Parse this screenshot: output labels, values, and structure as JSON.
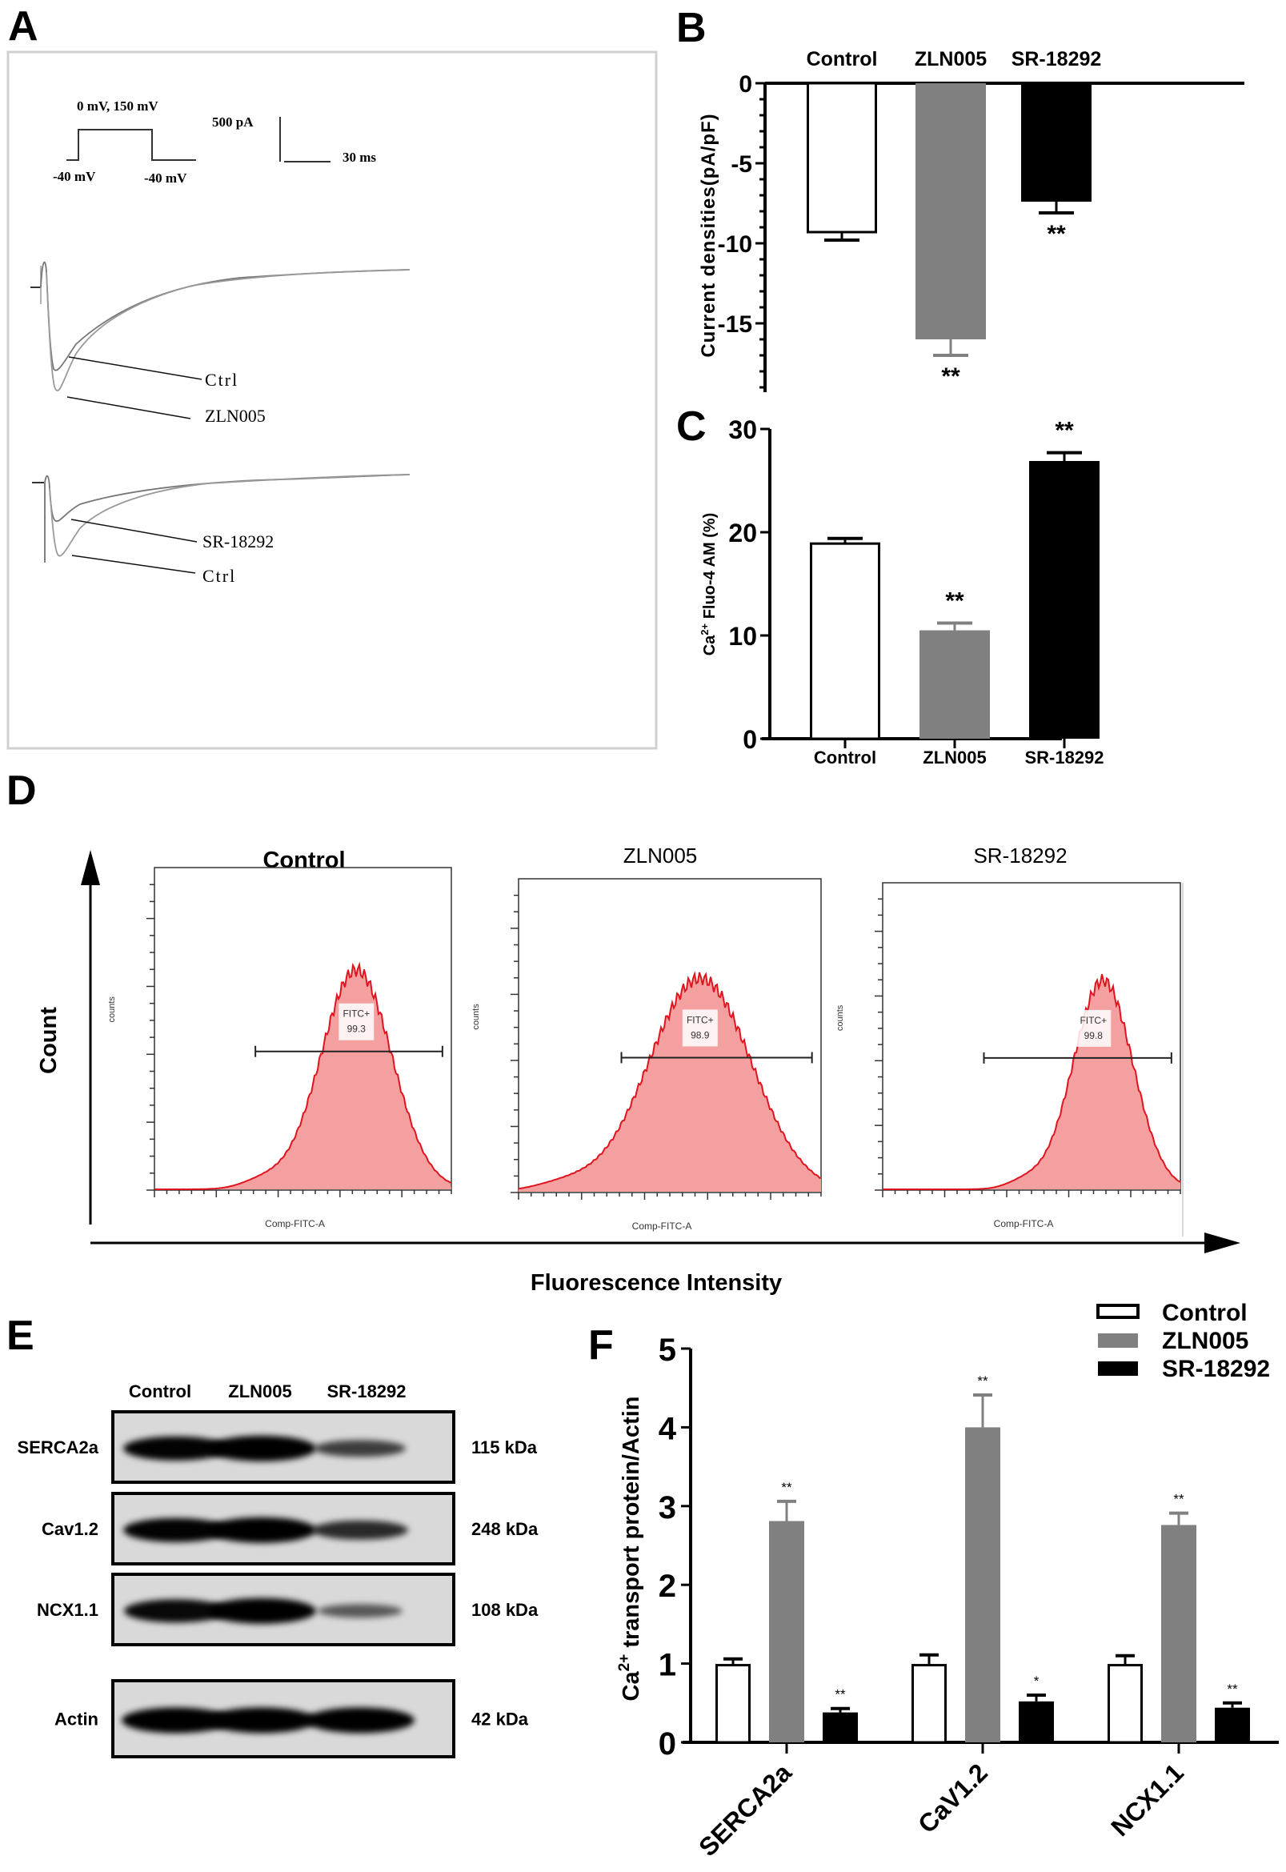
{
  "panels": {
    "A": {
      "letter": "A",
      "protocol": {
        "step_label": "0 mV, 150 mV",
        "holding_left": "-40 mV",
        "holding_right": "-40 mV"
      },
      "scale_bar": {
        "current": "500 pA",
        "time": "30 ms"
      },
      "traces_top": {
        "labels": [
          "Ctrl",
          "ZLN005"
        ]
      },
      "traces_bottom": {
        "labels": [
          "SR-18292",
          "Ctrl"
        ]
      }
    },
    "D": {
      "letter": "D",
      "y_label": "Count",
      "x_label": "Fluorescence Intensity",
      "histograms": [
        {
          "title": "Control",
          "gate_label": "FITC+",
          "gate_value": "99.3",
          "x_axis": "Comp-FITC-A",
          "y_axis": "counts",
          "peak_position": 0.68,
          "width": 0.12,
          "title_bold": true
        },
        {
          "title": "ZLN005",
          "gate_label": "FITC+",
          "gate_value": "98.9",
          "x_axis": "Comp-FITC-A",
          "y_axis": "counts",
          "peak_position": 0.6,
          "width": 0.17,
          "title_bold": false
        },
        {
          "title": "SR-18292",
          "gate_label": "FITC+",
          "gate_value": "99.8",
          "x_axis": "Comp-FITC-A",
          "y_axis": "counts",
          "peak_position": 0.74,
          "width": 0.1,
          "title_bold": false
        }
      ],
      "colors": {
        "fill": "#f4a0a0",
        "line": "#e0141e"
      }
    },
    "E": {
      "letter": "E",
      "lanes": [
        "Control",
        "ZLN005",
        "SR-18292"
      ],
      "rows": [
        {
          "protein": "SERCA2a",
          "size": "115 kDa",
          "intensity": [
            0.9,
            1.0,
            0.45
          ]
        },
        {
          "protein": "Cav1.2",
          "size": "248 kDa",
          "intensity": [
            0.9,
            1.0,
            0.6
          ]
        },
        {
          "protein": "NCX1.1",
          "size": "108 kDa",
          "intensity": [
            0.85,
            1.0,
            0.25
          ]
        },
        {
          "protein": "Actin",
          "size": "42 kDa",
          "intensity": [
            1.0,
            1.0,
            1.0
          ]
        }
      ]
    }
  },
  "chart_data": [
    {
      "id": "B",
      "type": "bar",
      "letter": "B",
      "title": "",
      "categories": [
        "Control",
        "ZLN005",
        "SR-18292"
      ],
      "values": [
        -9.3,
        -16.0,
        -7.4
      ],
      "errors": [
        0.5,
        1.0,
        0.7
      ],
      "significance": [
        "",
        "**",
        "**"
      ],
      "colors": [
        "#ffffff",
        "#808080",
        "#000000"
      ],
      "xlabel": "",
      "ylabel": "Current densities(pA/pF)",
      "ylim": [
        -19.3,
        0
      ],
      "yticks": [
        0,
        -5,
        -10,
        -15
      ],
      "category_axis_position": "top",
      "grid": false
    },
    {
      "id": "C",
      "type": "bar",
      "letter": "C",
      "title": "",
      "categories": [
        "Control",
        "ZLN005",
        "SR-18292"
      ],
      "values": [
        18.9,
        10.5,
        26.9
      ],
      "errors": [
        0.5,
        0.7,
        0.8
      ],
      "significance": [
        "",
        "**",
        "**"
      ],
      "colors": [
        "#ffffff",
        "#808080",
        "#000000"
      ],
      "xlabel": "",
      "ylabel_prefix": "Ca",
      "ylabel_sup": "2+",
      "ylabel_suffix": " Fluo-4 AM (%)",
      "ylim": [
        0,
        30
      ],
      "yticks": [
        0,
        10,
        20,
        30
      ],
      "grid": false
    },
    {
      "id": "F",
      "type": "bar",
      "letter": "F",
      "title": "",
      "categories": [
        "SERCA2a",
        "CaV1.2",
        "NCX1.1"
      ],
      "series": [
        {
          "name": "Control",
          "values": [
            0.98,
            0.98,
            0.98
          ],
          "errors": [
            0.08,
            0.13,
            0.12
          ],
          "significance": [
            "",
            "",
            ""
          ],
          "color": "#ffffff"
        },
        {
          "name": "ZLN005",
          "values": [
            2.81,
            4.0,
            2.76
          ],
          "errors": [
            0.25,
            0.41,
            0.15
          ],
          "significance": [
            "**",
            "**",
            "**"
          ],
          "color": "#808080"
        },
        {
          "name": "SR-18292",
          "values": [
            0.38,
            0.52,
            0.44
          ],
          "errors": [
            0.05,
            0.08,
            0.06
          ],
          "significance": [
            "**",
            "*",
            "**"
          ],
          "color": "#000000"
        }
      ],
      "xlabel": "",
      "ylabel_prefix": "Ca",
      "ylabel_sup": "2+",
      "ylabel_suffix": " transport protein/Actin",
      "ylim": [
        0,
        5
      ],
      "yticks": [
        0,
        1,
        2,
        3,
        4,
        5
      ],
      "legend_position": "top-right",
      "grid": false
    }
  ]
}
